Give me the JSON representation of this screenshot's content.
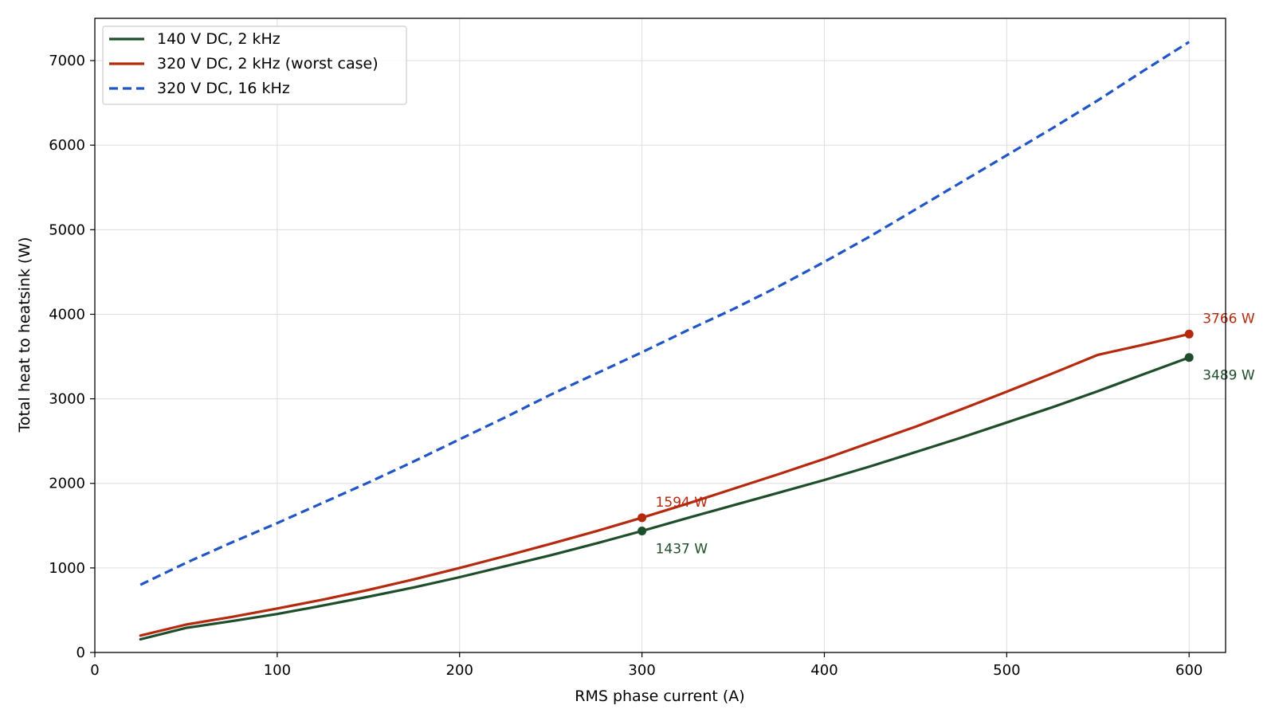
{
  "chart_data": {
    "type": "line",
    "title": "",
    "xlabel": "RMS phase current (A)",
    "ylabel": "Total heat to heatsink (W)",
    "xlim": [
      0,
      620
    ],
    "ylim": [
      0,
      7500
    ],
    "xticks": [
      0,
      100,
      200,
      300,
      400,
      500,
      600
    ],
    "yticks": [
      0,
      1000,
      2000,
      3000,
      4000,
      5000,
      6000,
      7000
    ],
    "grid": true,
    "legend_position": "top-left",
    "x": [
      25,
      50,
      75,
      100,
      125,
      150,
      175,
      200,
      225,
      250,
      275,
      300,
      325,
      350,
      375,
      400,
      425,
      450,
      475,
      500,
      525,
      550,
      575,
      600
    ],
    "series": [
      {
        "name": "140 V DC, 2 kHz",
        "color": "#1e4d2b",
        "style": "solid",
        "values": [
          155,
          290,
          370,
          455,
          555,
          660,
          770,
          890,
          1020,
          1150,
          1290,
          1437,
          1590,
          1740,
          1890,
          2040,
          2200,
          2370,
          2540,
          2720,
          2900,
          3090,
          3290,
          3489
        ]
      },
      {
        "name": "320 V DC, 2 kHz (worst case)",
        "color": "#b5290e",
        "style": "solid",
        "values": [
          200,
          330,
          420,
          520,
          625,
          740,
          865,
          1000,
          1140,
          1285,
          1435,
          1594,
          1760,
          1935,
          2110,
          2290,
          2480,
          2670,
          2875,
          3085,
          3300,
          3520,
          3640,
          3766
        ]
      },
      {
        "name": "320 V DC, 16 kHz",
        "color": "#1f55c7",
        "style": "dashed",
        "values": [
          800,
          1060,
          1300,
          1530,
          1770,
          2010,
          2260,
          2520,
          2780,
          3050,
          3300,
          3550,
          3810,
          4060,
          4330,
          4620,
          4920,
          5240,
          5560,
          5880,
          6200,
          6530,
          6880,
          7220
        ]
      }
    ],
    "annotations": [
      {
        "text": "1594 W",
        "x": 300,
        "y": 1594,
        "color": "#b5290e",
        "placement": "above-right"
      },
      {
        "text": "1437 W",
        "x": 300,
        "y": 1437,
        "color": "#1e4d2b",
        "placement": "below-right"
      },
      {
        "text": "3766 W",
        "x": 600,
        "y": 3766,
        "color": "#b5290e",
        "placement": "above-right"
      },
      {
        "text": "3489 W",
        "x": 600,
        "y": 3489,
        "color": "#1e4d2b",
        "placement": "below-right"
      }
    ]
  }
}
